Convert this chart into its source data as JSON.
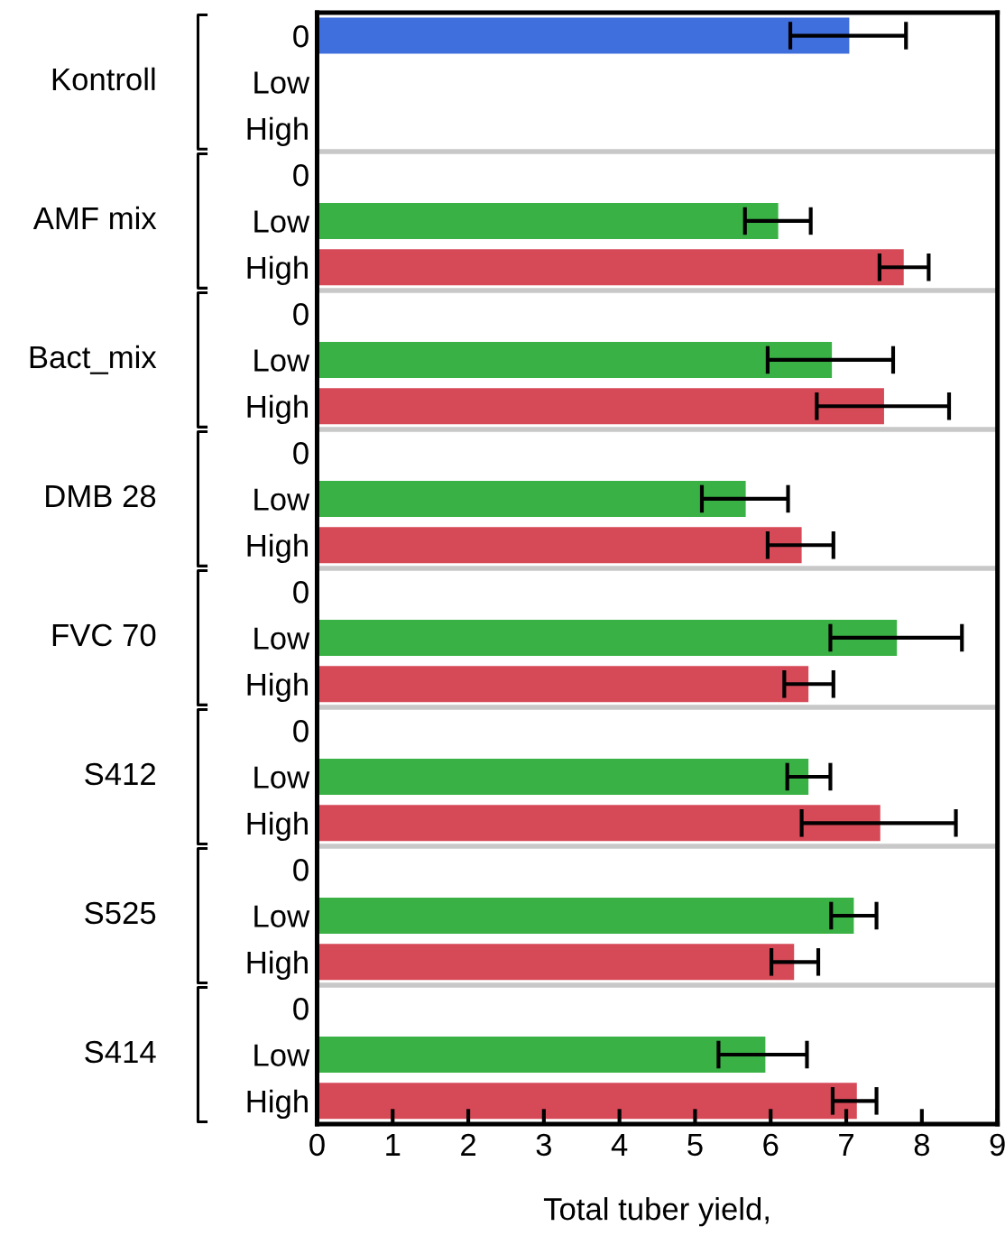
{
  "chart_data": {
    "type": "bar",
    "orientation": "horizontal",
    "xlabel": "Total tuber yield,",
    "categories": [
      "0",
      "Low",
      "High",
      "0",
      "Low",
      "High",
      "0",
      "Low",
      "High",
      "0",
      "Low",
      "High",
      "0",
      "Low",
      "High",
      "0",
      "Low",
      "High",
      "0",
      "Low",
      "High",
      "0",
      "Low",
      "High"
    ],
    "values": [
      7.04,
      null,
      null,
      null,
      6.1,
      7.76,
      null,
      6.81,
      7.5,
      null,
      5.67,
      6.41,
      null,
      7.67,
      6.5,
      null,
      6.5,
      7.45,
      null,
      7.1,
      6.31,
      null,
      5.93,
      7.14
    ],
    "errors": [
      [
        6.26,
        7.79
      ],
      null,
      null,
      null,
      [
        5.66,
        6.53
      ],
      [
        7.44,
        8.09
      ],
      null,
      [
        5.96,
        7.62
      ],
      [
        6.61,
        8.36
      ],
      null,
      [
        5.09,
        6.23
      ],
      [
        5.96,
        6.83
      ],
      null,
      [
        6.79,
        8.53
      ],
      [
        6.18,
        6.83
      ],
      null,
      [
        6.22,
        6.79
      ],
      [
        6.41,
        8.45
      ],
      null,
      [
        6.8,
        7.4
      ],
      [
        6.01,
        6.63
      ],
      null,
      [
        5.31,
        6.48
      ],
      [
        6.82,
        7.4
      ]
    ],
    "colors": [
      "#3f6fdc",
      "#3ab144",
      "#d64957",
      "#3f6fdc",
      "#3ab144",
      "#d64957",
      "#3f6fdc",
      "#3ab144",
      "#d64957",
      "#3f6fdc",
      "#3ab144",
      "#d64957",
      "#3f6fdc",
      "#3ab144",
      "#d64957",
      "#3f6fdc",
      "#3ab144",
      "#d64957",
      "#3f6fdc",
      "#3ab144",
      "#d64957",
      "#3f6fdc",
      "#3ab144",
      "#d64957"
    ],
    "annotations": [
      "Kontroll",
      "AMF mix",
      "Bact_mix",
      "DMB 28",
      "FVC 70",
      "S412",
      "S525",
      "S414"
    ],
    "xlim": [
      0,
      9
    ],
    "xticks": [
      0,
      1,
      2,
      3,
      4,
      5,
      6,
      7,
      8,
      9
    ],
    "grid": false
  }
}
